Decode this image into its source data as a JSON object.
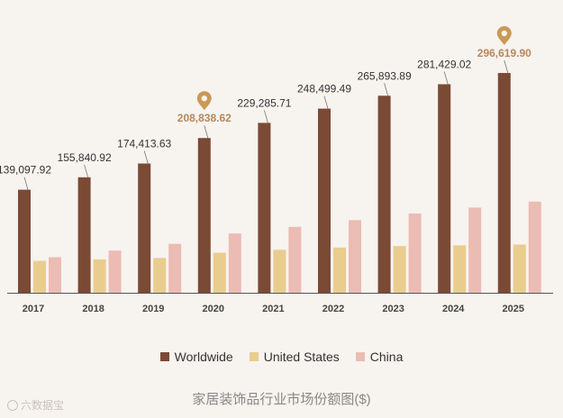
{
  "chart_data": {
    "type": "bar",
    "categories": [
      "2017",
      "2018",
      "2019",
      "2020",
      "2021",
      "2022",
      "2023",
      "2024",
      "2025"
    ],
    "series": [
      {
        "name": "Worldwide",
        "color": "#7a4a35",
        "values": [
          139097.92,
          155840.92,
          174413.63,
          208838.62,
          229285.71,
          248499.49,
          265893.89,
          281429.02,
          296619.9
        ]
      },
      {
        "name": "United States",
        "color": "#e9cc8e",
        "values": [
          43000,
          45000,
          47000,
          54000,
          58000,
          61000,
          63000,
          64000,
          65000
        ]
      },
      {
        "name": "China",
        "color": "#ebbcb3",
        "values": [
          48000,
          57000,
          66000,
          80000,
          89000,
          98000,
          107000,
          115000,
          123000
        ]
      }
    ],
    "data_labels": [
      "139,097.92",
      "155,840.92",
      "174,413.63",
      "208,838.62",
      "229,285.71",
      "248,499.49",
      "265,893.89",
      "281,429.02",
      "296,619.90"
    ],
    "highlight_color": "#b8875a",
    "highlight_categories": [
      "2020",
      "2025"
    ],
    "title": "家居装饰品行业市场份额图($)",
    "ylim": [
      0,
      300000
    ]
  },
  "watermark": "六数据宝"
}
